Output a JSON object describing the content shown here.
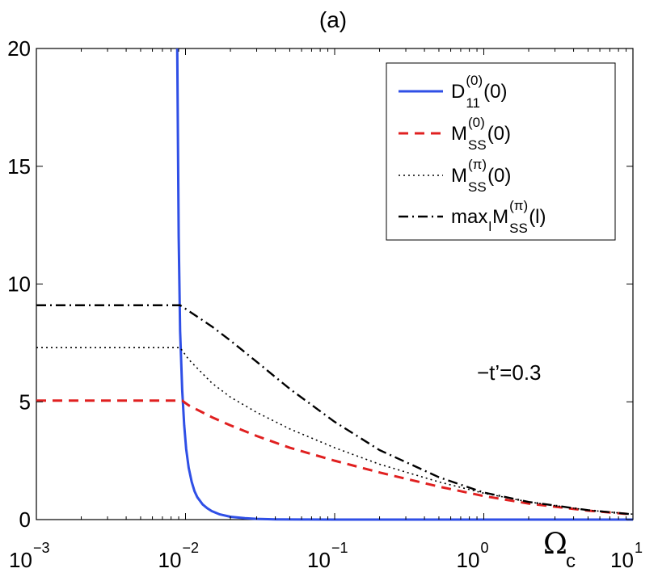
{
  "chart_data": {
    "type": "line",
    "title": "(a)",
    "xlabel": {
      "main": "Ω",
      "sub": "c"
    },
    "ylabel": "",
    "xscale": "log",
    "xlim": [
      0.001,
      10
    ],
    "ylim": [
      0,
      20
    ],
    "x_ticks": [
      {
        "base": "10",
        "exp": "−3",
        "value": 0.001
      },
      {
        "base": "10",
        "exp": "−2",
        "value": 0.01
      },
      {
        "base": "10",
        "exp": "−1",
        "value": 0.1
      },
      {
        "base": "10",
        "exp": "0",
        "value": 1
      },
      {
        "base": "10",
        "exp": "1",
        "value": 10
      }
    ],
    "y_ticks": [
      {
        "label": "0",
        "value": 0
      },
      {
        "label": "5",
        "value": 5
      },
      {
        "label": "10",
        "value": 10
      },
      {
        "label": "15",
        "value": 15
      },
      {
        "label": "20",
        "value": 20
      }
    ],
    "annotation": "−t’=0.3",
    "legend_position": "top-right",
    "series": [
      {
        "name": "D11(0)",
        "legend": {
          "base": "D",
          "sup": "(0)",
          "sub": "11",
          "tail": "(0)"
        },
        "color": "#2f4fe6",
        "style": "solid",
        "x": [
          0.0088,
          0.009,
          0.0092,
          0.0095,
          0.0098,
          0.0101,
          0.0105,
          0.011,
          0.0115,
          0.012,
          0.013,
          0.014,
          0.015,
          0.017,
          0.02,
          0.025,
          0.03,
          0.04,
          0.06,
          0.1,
          0.3,
          1,
          10
        ],
        "y": [
          20,
          12,
          8,
          5.5,
          4,
          3,
          2.2,
          1.6,
          1.2,
          0.95,
          0.65,
          0.48,
          0.36,
          0.22,
          0.12,
          0.06,
          0.03,
          0.01,
          0.003,
          0.0,
          0.0,
          0.0,
          0.0
        ]
      },
      {
        "name": "MSS(0)(0)",
        "legend": {
          "base": "M",
          "sup": "(0)",
          "sub": "SS",
          "tail": "(0)"
        },
        "color": "#e02020",
        "style": "dashed",
        "x": [
          0.001,
          0.002,
          0.005,
          0.0095,
          0.0105,
          0.015,
          0.02,
          0.03,
          0.05,
          0.1,
          0.2,
          0.5,
          1,
          2,
          5,
          10
        ],
        "y": [
          5.05,
          5.05,
          5.05,
          5.05,
          4.85,
          4.35,
          4.0,
          3.55,
          3.05,
          2.5,
          2.0,
          1.4,
          1.0,
          0.68,
          0.38,
          0.22
        ]
      },
      {
        "name": "MSS(π)(0)",
        "legend": {
          "base": "M",
          "sup": "(π)",
          "sub": "SS",
          "tail": "(0)"
        },
        "color": "#000000",
        "style": "dotted",
        "x": [
          0.001,
          0.002,
          0.005,
          0.0092,
          0.0105,
          0.015,
          0.02,
          0.03,
          0.05,
          0.1,
          0.2,
          0.5,
          1,
          2,
          5,
          10
        ],
        "y": [
          7.3,
          7.3,
          7.3,
          7.3,
          6.8,
          5.8,
          5.2,
          4.55,
          3.85,
          3.05,
          2.35,
          1.6,
          1.12,
          0.75,
          0.4,
          0.23
        ]
      },
      {
        "name": "maxl MSS(π)(l)",
        "legend": {
          "base": "max",
          "base_sub": "l",
          "base2": " M",
          "sup": "(π)",
          "sub": "SS",
          "tail": "(l)"
        },
        "color": "#000000",
        "style": "dashdot",
        "x": [
          0.001,
          0.002,
          0.005,
          0.0092,
          0.01,
          0.015,
          0.02,
          0.03,
          0.05,
          0.1,
          0.2,
          0.5,
          1,
          2,
          5,
          10
        ],
        "y": [
          9.1,
          9.1,
          9.1,
          9.1,
          8.95,
          8.2,
          7.6,
          6.7,
          5.55,
          4.15,
          2.95,
          1.8,
          1.15,
          0.75,
          0.4,
          0.22
        ]
      }
    ]
  }
}
